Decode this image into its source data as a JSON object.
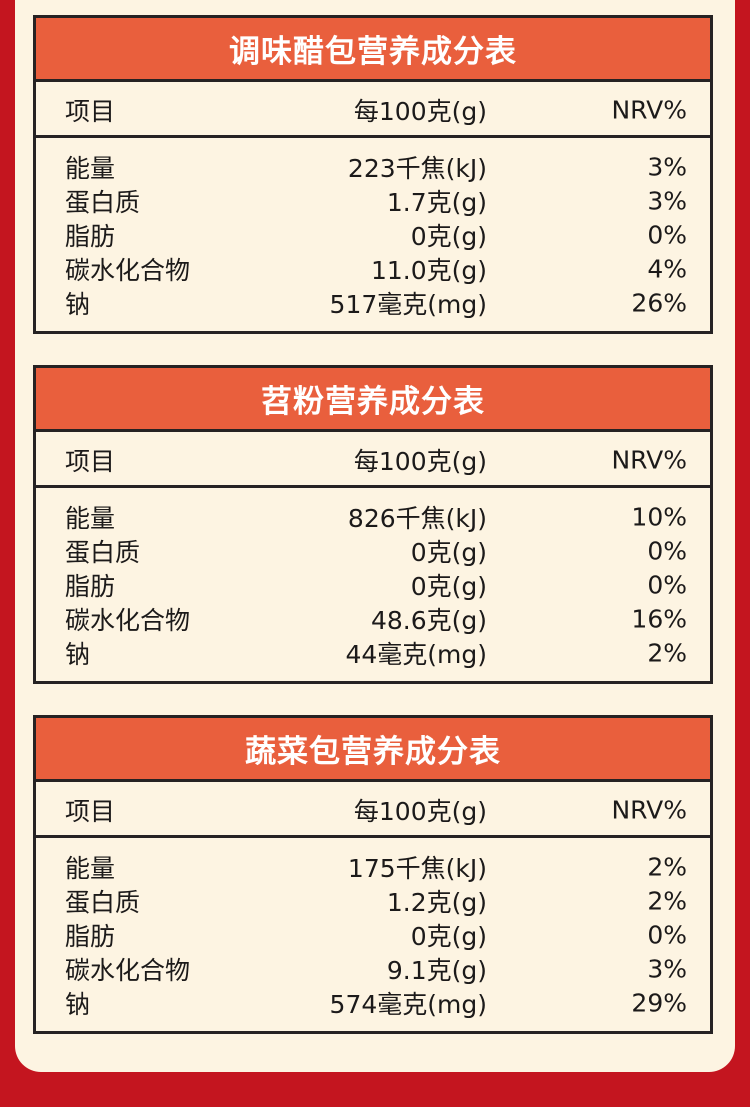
{
  "tables": [
    {
      "title": "调味醋包营养成分表",
      "header": {
        "item": "项目",
        "per100": "每100克(g)",
        "nrv": "NRV%"
      },
      "rows": [
        {
          "item": "能量",
          "value": "223千焦(kJ)",
          "nrv": "3%"
        },
        {
          "item": "蛋白质",
          "value": "1.7克(g)",
          "nrv": "3%"
        },
        {
          "item": "脂肪",
          "value": "0克(g)",
          "nrv": "0%"
        },
        {
          "item": "碳水化合物",
          "value": "11.0克(g)",
          "nrv": "4%"
        },
        {
          "item": "钠",
          "value": "517毫克(mg)",
          "nrv": "26%"
        }
      ]
    },
    {
      "title": "苕粉营养成分表",
      "header": {
        "item": "项目",
        "per100": "每100克(g)",
        "nrv": "NRV%"
      },
      "rows": [
        {
          "item": "能量",
          "value": "826千焦(kJ)",
          "nrv": "10%"
        },
        {
          "item": "蛋白质",
          "value": "0克(g)",
          "nrv": "0%"
        },
        {
          "item": "脂肪",
          "value": "0克(g)",
          "nrv": "0%"
        },
        {
          "item": "碳水化合物",
          "value": "48.6克(g)",
          "nrv": "16%"
        },
        {
          "item": "钠",
          "value": "44毫克(mg)",
          "nrv": "2%"
        }
      ]
    },
    {
      "title": "蔬菜包营养成分表",
      "header": {
        "item": "项目",
        "per100": "每100克(g)",
        "nrv": "NRV%"
      },
      "rows": [
        {
          "item": "能量",
          "value": "175千焦(kJ)",
          "nrv": "2%"
        },
        {
          "item": "蛋白质",
          "value": "1.2克(g)",
          "nrv": "2%"
        },
        {
          "item": "脂肪",
          "value": "0克(g)",
          "nrv": "0%"
        },
        {
          "item": "碳水化合物",
          "value": "9.1克(g)",
          "nrv": "3%"
        },
        {
          "item": "钠",
          "value": "574毫克(mg)",
          "nrv": "29%"
        }
      ]
    }
  ],
  "colors": {
    "background": "#c4151f",
    "panel": "#fdf4e2",
    "title_bar": "#e95f3d",
    "border": "#262223"
  }
}
